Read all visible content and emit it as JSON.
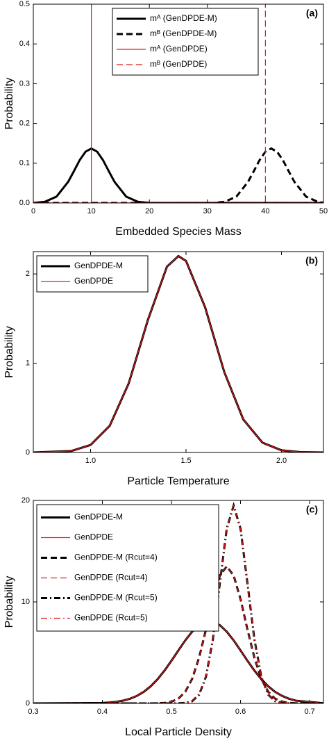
{
  "chart_data": [
    {
      "type": "line",
      "panel_label": "(a)",
      "x_label": "Embedded Species Mass",
      "y_label": "Probability",
      "xlim": [
        0,
        50
      ],
      "ylim": [
        0,
        0.5
      ],
      "xticks": [
        0,
        10,
        20,
        30,
        40,
        50
      ],
      "yticks": [
        {
          "value": 0,
          "label": "0.0"
        },
        0.1,
        0.2,
        0.3,
        0.4,
        0.5
      ],
      "legend": "upper center",
      "series": [
        {
          "name": "mᴬ (GenDPDE-M)",
          "color": "#000000",
          "dash": "solid",
          "x": [
            0,
            2,
            4,
            6,
            7,
            8,
            9,
            10,
            11,
            12,
            13,
            14,
            16,
            18,
            20,
            50
          ],
          "values": [
            0,
            0.003,
            0.016,
            0.053,
            0.08,
            0.108,
            0.129,
            0.137,
            0.129,
            0.108,
            0.08,
            0.053,
            0.016,
            0.003,
            0,
            0
          ]
        },
        {
          "name": "mᴮ (GenDPDE-M)",
          "color": "#000000",
          "dash": "dashed",
          "x": [
            0,
            31,
            33,
            35,
            37,
            38,
            39,
            40,
            41,
            42,
            43,
            44,
            45,
            47,
            49,
            50
          ],
          "values": [
            0,
            0,
            0.003,
            0.016,
            0.053,
            0.08,
            0.108,
            0.129,
            0.137,
            0.129,
            0.108,
            0.08,
            0.053,
            0.016,
            0.003,
            0.0004
          ]
        },
        {
          "name": "mᴬ (GenDPDE)",
          "color": "#e41a1c",
          "dash": "solid",
          "x": [
            0,
            10,
            10,
            10,
            50
          ],
          "values": [
            0,
            0,
            0.5,
            0,
            0
          ]
        },
        {
          "name": "mᴮ (GenDPDE)",
          "color": "#e41a1c",
          "dash": "dashed",
          "x": [
            0,
            40,
            40,
            40,
            50
          ],
          "values": [
            0,
            0,
            0.5,
            0,
            0
          ]
        }
      ]
    },
    {
      "type": "line",
      "panel_label": "(b)",
      "x_label": "Particle Temperature",
      "y_label": "Probability",
      "xlim": [
        0.7,
        2.22
      ],
      "ylim": [
        0,
        2.25
      ],
      "xticks": [
        {
          "value": 1,
          "label": "1.0"
        },
        1.5,
        {
          "value": 2,
          "label": "2.0"
        }
      ],
      "yticks": [
        0,
        1,
        2
      ],
      "legend": "upper left",
      "x": [
        0.7,
        0.9,
        1.0,
        1.1,
        1.2,
        1.3,
        1.4,
        1.46,
        1.5,
        1.6,
        1.7,
        1.8,
        1.9,
        2.0,
        2.1,
        2.22
      ],
      "series": [
        {
          "name": "GenDPDE-M",
          "color": "#000000",
          "dash": "solid",
          "values": [
            0,
            0.017,
            0.084,
            0.298,
            0.775,
            1.482,
            2.081,
            2.2,
            2.146,
            1.627,
            0.904,
            0.37,
            0.111,
            0.024,
            0.004,
            0
          ]
        },
        {
          "name": "GenDPDE",
          "color": "#e41a1c",
          "dash": "solid",
          "values": [
            0,
            0.017,
            0.084,
            0.298,
            0.775,
            1.482,
            2.081,
            2.2,
            2.146,
            1.627,
            0.904,
            0.37,
            0.111,
            0.024,
            0.004,
            0
          ]
        }
      ]
    },
    {
      "type": "line",
      "panel_label": "(c)",
      "x_label": "Local Particle Density",
      "y_label": "Probability",
      "xlim": [
        0.3,
        0.72
      ],
      "ylim": [
        0,
        20
      ],
      "xticks": [
        0.3,
        0.4,
        0.5,
        0.6,
        0.7
      ],
      "yticks": [
        0,
        10,
        20
      ],
      "legend": "upper left",
      "x": [
        0.3,
        0.4,
        0.41,
        0.42,
        0.43,
        0.44,
        0.45,
        0.46,
        0.47,
        0.48,
        0.49,
        0.5,
        0.51,
        0.52,
        0.53,
        0.54,
        0.55,
        0.56,
        0.57,
        0.58,
        0.59,
        0.6,
        0.61,
        0.62,
        0.63,
        0.64,
        0.65,
        0.66,
        0.67,
        0.68,
        0.72
      ],
      "series": [
        {
          "name": "GenDPDE-M",
          "color": "#000000",
          "dash": "solid",
          "values": [
            0,
            0.044,
            0.084,
            0.155,
            0.273,
            0.459,
            0.74,
            1.142,
            1.689,
            2.39,
            3.24,
            4.2,
            5.22,
            6.21,
            7.07,
            7.71,
            8.06,
            8.06,
            7.71,
            7.07,
            6.21,
            5.22,
            4.2,
            3.24,
            2.39,
            1.69,
            1.14,
            0.74,
            0.46,
            0.27,
            0.02
          ]
        },
        {
          "name": "GenDPDE",
          "color": "#e41a1c",
          "dash": "solid",
          "values": [
            0,
            0.044,
            0.084,
            0.155,
            0.273,
            0.459,
            0.74,
            1.142,
            1.689,
            2.39,
            3.24,
            4.2,
            5.22,
            6.21,
            7.07,
            7.71,
            8.06,
            8.06,
            7.71,
            7.07,
            6.21,
            5.22,
            4.2,
            3.24,
            2.39,
            1.69,
            1.14,
            0.74,
            0.46,
            0.27,
            0.02
          ]
        },
        {
          "name": "GenDPDE-M (Rcut=4)",
          "color": "#000000",
          "dash": "dashed",
          "values": [
            0,
            0,
            0,
            0,
            0,
            0,
            0,
            0,
            0.003,
            0.014,
            0.052,
            0.167,
            0.468,
            1.143,
            2.43,
            4.51,
            7.28,
            10.26,
            12.6,
            13.5,
            12.6,
            10.26,
            7.28,
            4.51,
            2.43,
            1.14,
            0.47,
            0.17,
            0.05,
            0.01,
            0
          ]
        },
        {
          "name": "GenDPDE (Rcut=4)",
          "color": "#e41a1c",
          "dash": "dashed",
          "values": [
            0,
            0,
            0,
            0,
            0,
            0,
            0,
            0,
            0.003,
            0.014,
            0.052,
            0.167,
            0.468,
            1.143,
            2.43,
            4.51,
            7.28,
            10.26,
            12.6,
            13.5,
            12.6,
            10.26,
            7.28,
            4.51,
            2.43,
            1.14,
            0.47,
            0.17,
            0.05,
            0.01,
            0
          ]
        },
        {
          "name": "GenDPDE-M (Rcut=5)",
          "color": "#000000",
          "dash": "dashdot",
          "values": [
            0,
            0,
            0,
            0,
            0,
            0,
            0,
            0,
            0,
            0,
            0,
            0.001,
            0.007,
            0.043,
            0.217,
            0.857,
            2.64,
            6.33,
            11.83,
            17.21,
            19.5,
            17.21,
            11.83,
            6.33,
            2.64,
            0.86,
            0.22,
            0.04,
            0.01,
            0,
            0
          ]
        },
        {
          "name": "GenDPDE (Rcut=5)",
          "color": "#e41a1c",
          "dash": "dashdot",
          "values": [
            0,
            0,
            0,
            0,
            0,
            0,
            0,
            0,
            0,
            0,
            0,
            0.001,
            0.007,
            0.043,
            0.217,
            0.857,
            2.64,
            6.33,
            11.83,
            17.21,
            19.5,
            17.21,
            11.83,
            6.33,
            2.64,
            0.86,
            0.22,
            0.04,
            0.01,
            0,
            0
          ]
        }
      ]
    }
  ]
}
